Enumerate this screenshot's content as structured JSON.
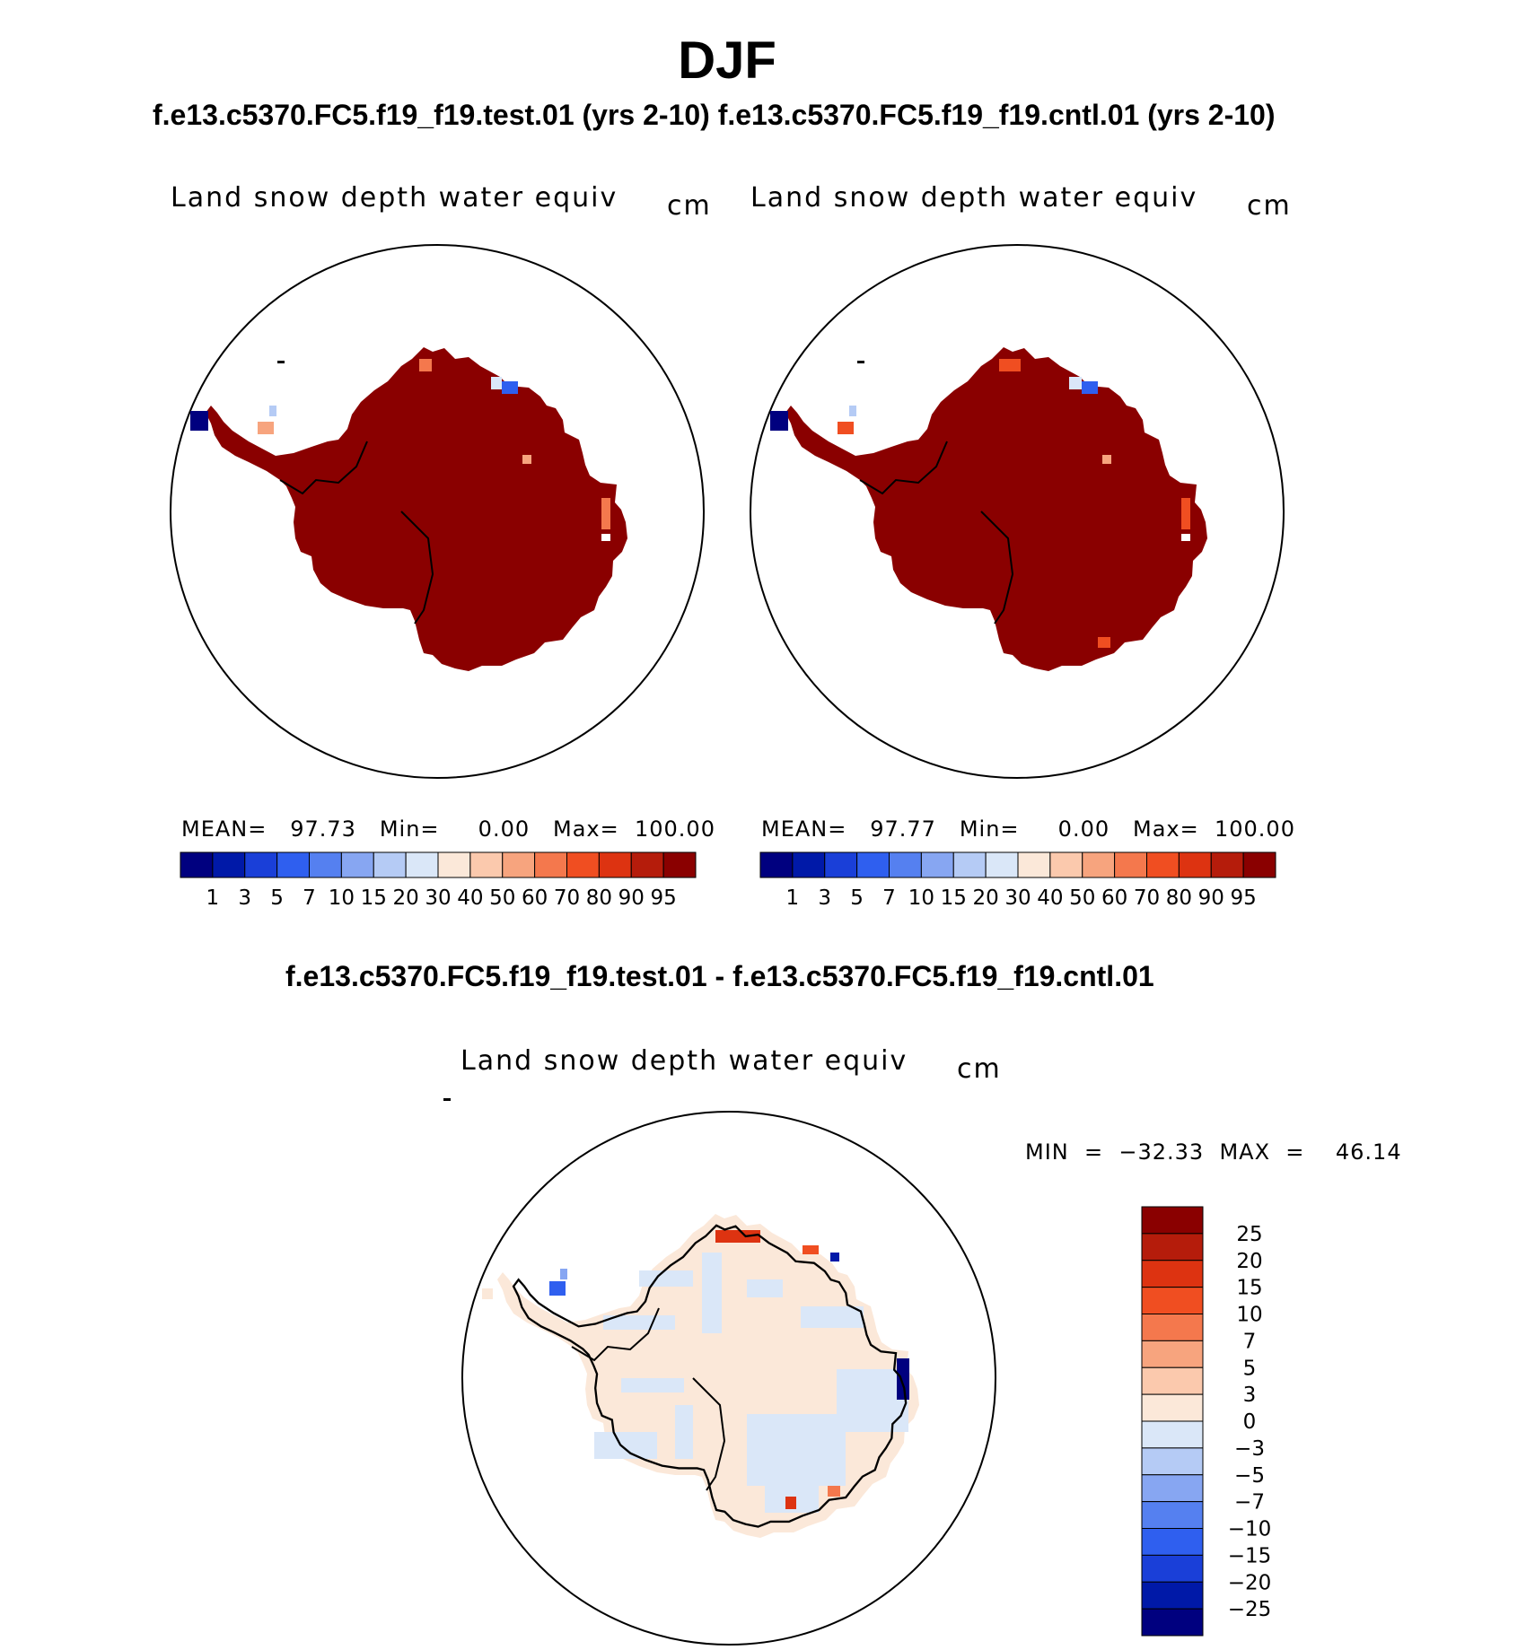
{
  "title": "DJF",
  "case_titles": "f.e13.c5370.FC5.f19_f19.test.01 (yrs 2-10) f.e13.c5370.FC5.f19_f19.cntl.01 (yrs 2-10)",
  "diff_title": "f.e13.c5370.FC5.f19_f19.test.01 - f.e13.c5370.FC5.f19_f19.cntl.01",
  "panels": {
    "test": {
      "variable": "Land snow depth water equiv",
      "units": "cm",
      "stats": "MEAN=   97.73   Min=     0.00   Max=  100.00",
      "mean": 97.73,
      "min": 0.0,
      "max": 100.0
    },
    "cntl": {
      "variable": "Land snow depth water equiv",
      "units": "cm",
      "stats": "MEAN=   97.77   Min=     0.00   Max=  100.00",
      "mean": 97.77,
      "min": 0.0,
      "max": 100.0
    },
    "diff": {
      "variable": "Land snow depth water equiv",
      "units": "cm",
      "stats": "MIN  =  −32.33  MAX  =    46.14",
      "min": -32.33,
      "max": 46.14
    }
  },
  "colorbar_abs": {
    "colors": [
      "#00007f",
      "#0019a8",
      "#1a3fd8",
      "#2f5fef",
      "#5580f0",
      "#87a6f2",
      "#b5cbf5",
      "#dae7f8",
      "#fbe8d9",
      "#fbc9ad",
      "#f7a47e",
      "#f4784d",
      "#f04e21",
      "#dd3311",
      "#b51c0b",
      "#8a0000"
    ],
    "ticks": [
      "1",
      "3",
      "5",
      "7",
      "10",
      "15",
      "20",
      "30",
      "40",
      "50",
      "60",
      "70",
      "80",
      "90",
      "95"
    ]
  },
  "colorbar_diff": {
    "colors": [
      "#8a0000",
      "#b51c0b",
      "#dd3311",
      "#f04e21",
      "#f4784d",
      "#f7a47e",
      "#fbc9ad",
      "#fbe8d9",
      "#dae7f8",
      "#b5cbf5",
      "#87a6f2",
      "#5580f0",
      "#2f5fef",
      "#1a3fd8",
      "#0019a8",
      "#00007f"
    ],
    "ticks": [
      "25",
      "20",
      "15",
      "10",
      "7",
      "5",
      "3",
      "0",
      "−3",
      "−5",
      "−7",
      "−10",
      "−15",
      "−20",
      "−25"
    ]
  },
  "colors": {
    "land_high": "#8a0000",
    "diff_pos": "#fbe8d9",
    "diff_neg": "#dae7f8"
  }
}
